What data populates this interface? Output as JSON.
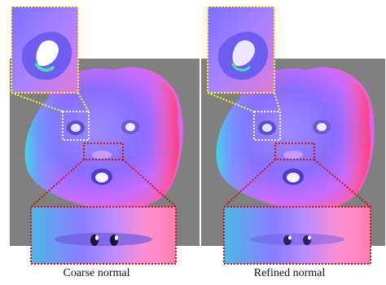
{
  "panels": [
    {
      "id": "coarse",
      "caption": "Coarse normal"
    },
    {
      "id": "refined",
      "caption": "Refined normal"
    }
  ],
  "colors": {
    "background_gray": "#808080",
    "eye_inset_border": "#ffff33",
    "mouth_inset_border": "#cc1111"
  }
}
